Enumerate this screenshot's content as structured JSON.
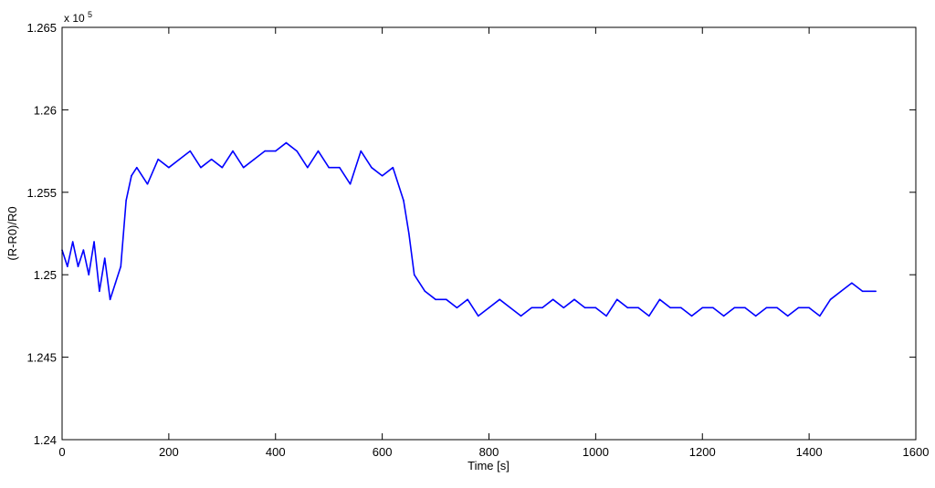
{
  "chart_data": {
    "type": "line",
    "title": "",
    "xlabel": "Time [s]",
    "ylabel": "(R-R0)/R0",
    "y_exponent_label": "x 10",
    "y_exponent_power": "5",
    "xlim": [
      0,
      1600
    ],
    "ylim": [
      1.24,
      1.265
    ],
    "xticks": [
      0,
      200,
      400,
      600,
      800,
      1000,
      1200,
      1400,
      1600
    ],
    "xtick_labels": [
      "0",
      "200",
      "400",
      "600",
      "800",
      "1000",
      "1200",
      "1400",
      "1600"
    ],
    "yticks": [
      1.24,
      1.245,
      1.25,
      1.255,
      1.26,
      1.265
    ],
    "ytick_labels": [
      "1.24",
      "1.245",
      "1.25",
      "1.255",
      "1.26",
      "1.265"
    ],
    "grid": false,
    "line_color": "#0000ff",
    "series": [
      {
        "x": [
          0,
          10,
          20,
          30,
          40,
          50,
          60,
          70,
          80,
          90,
          100,
          110,
          120,
          130,
          140,
          160,
          180,
          200,
          220,
          240,
          260,
          280,
          300,
          320,
          340,
          360,
          380,
          400,
          420,
          440,
          460,
          480,
          500,
          520,
          540,
          560,
          580,
          600,
          620,
          640,
          650,
          660,
          680,
          700,
          720,
          740,
          760,
          780,
          800,
          820,
          840,
          860,
          880,
          900,
          920,
          940,
          960,
          980,
          1000,
          1020,
          1040,
          1060,
          1080,
          1100,
          1120,
          1140,
          1160,
          1180,
          1200,
          1220,
          1240,
          1260,
          1280,
          1300,
          1320,
          1340,
          1360,
          1380,
          1400,
          1420,
          1440,
          1460,
          1480,
          1500,
          1525
        ],
        "y": [
          1.2515,
          1.2505,
          1.252,
          1.2505,
          1.2515,
          1.25,
          1.252,
          1.249,
          1.251,
          1.2485,
          1.2495,
          1.2505,
          1.2545,
          1.256,
          1.2565,
          1.2555,
          1.257,
          1.2565,
          1.257,
          1.2575,
          1.2565,
          1.257,
          1.2565,
          1.2575,
          1.2565,
          1.257,
          1.2575,
          1.2575,
          1.258,
          1.2575,
          1.2565,
          1.2575,
          1.2565,
          1.2565,
          1.2555,
          1.2575,
          1.2565,
          1.256,
          1.2565,
          1.2545,
          1.2525,
          1.25,
          1.249,
          1.2485,
          1.2485,
          1.248,
          1.2485,
          1.2475,
          1.248,
          1.2485,
          1.248,
          1.2475,
          1.248,
          1.248,
          1.2485,
          1.248,
          1.2485,
          1.248,
          1.248,
          1.2475,
          1.2485,
          1.248,
          1.248,
          1.2475,
          1.2485,
          1.248,
          1.248,
          1.2475,
          1.248,
          1.248,
          1.2475,
          1.248,
          1.248,
          1.2475,
          1.248,
          1.248,
          1.2475,
          1.248,
          1.248,
          1.2475,
          1.2485,
          1.249,
          1.2495,
          1.249,
          1.249
        ]
      }
    ]
  }
}
